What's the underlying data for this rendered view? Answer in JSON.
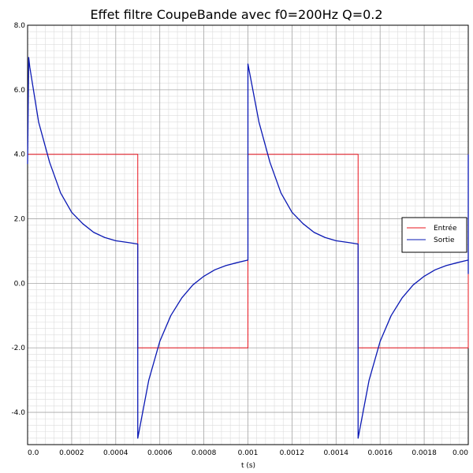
{
  "chart_data": {
    "type": "line",
    "title": "Effet filtre CoupeBande avec f0=200Hz Q=0.2",
    "xlabel": "t (s)",
    "ylabel": "",
    "xlim": [
      0,
      0.002
    ],
    "ylim": [
      -5,
      8
    ],
    "x_ticks": [
      0,
      0.0002,
      0.0004,
      0.0006,
      0.0008,
      0.001,
      0.0012,
      0.0014,
      0.0016,
      0.0018,
      0.002
    ],
    "x_tick_labels": [
      "0.0",
      "0.0002",
      "0.0004",
      "0.0006",
      "0.0008",
      "0.001",
      "0.0012",
      "0.0014",
      "0.0016",
      "0.0018",
      "0.00"
    ],
    "y_ticks": [
      -4,
      -2,
      0,
      2,
      4,
      6,
      8
    ],
    "y_tick_labels": [
      "-4.0",
      "-2.0",
      "0.0",
      "2.0",
      "4.0",
      "6.0",
      "8.0"
    ],
    "grid": "major and minor",
    "legend_position": "right",
    "series": [
      {
        "name": "Entrée",
        "color": "#e8141e",
        "points": [
          [
            0,
            4
          ],
          [
            0.0005,
            4
          ],
          [
            0.0005,
            -2
          ],
          [
            0.001,
            -2
          ],
          [
            0.001,
            4
          ],
          [
            0.0015,
            4
          ],
          [
            0.0015,
            -2
          ],
          [
            0.002,
            -2
          ],
          [
            0.002,
            4
          ]
        ]
      },
      {
        "name": "Sortie",
        "color": "#0a18b4",
        "points": [
          [
            0,
            3.7
          ],
          [
            5e-06,
            7.0
          ],
          [
            1e-05,
            6.7
          ],
          [
            5e-05,
            5.0
          ],
          [
            0.0001,
            3.75
          ],
          [
            0.00015,
            2.8
          ],
          [
            0.0002,
            2.2
          ],
          [
            0.00025,
            1.85
          ],
          [
            0.0003,
            1.58
          ],
          [
            0.00035,
            1.42
          ],
          [
            0.0004,
            1.32
          ],
          [
            0.00045,
            1.27
          ],
          [
            0.0005,
            1.22
          ],
          [
            0.0005,
            -4.8
          ],
          [
            0.00055,
            -3.0
          ],
          [
            0.0006,
            -1.8
          ],
          [
            0.00065,
            -1.0
          ],
          [
            0.0007,
            -0.45
          ],
          [
            0.00075,
            -0.05
          ],
          [
            0.0008,
            0.22
          ],
          [
            0.00085,
            0.42
          ],
          [
            0.0009,
            0.55
          ],
          [
            0.00095,
            0.64
          ],
          [
            0.001,
            0.72
          ],
          [
            0.001,
            6.8
          ],
          [
            0.00105,
            5.0
          ],
          [
            0.0011,
            3.75
          ],
          [
            0.00115,
            2.8
          ],
          [
            0.0012,
            2.2
          ],
          [
            0.00125,
            1.85
          ],
          [
            0.0013,
            1.58
          ],
          [
            0.00135,
            1.42
          ],
          [
            0.0014,
            1.32
          ],
          [
            0.00145,
            1.27
          ],
          [
            0.0015,
            1.22
          ],
          [
            0.0015,
            -4.8
          ],
          [
            0.00155,
            -3.0
          ],
          [
            0.0016,
            -1.8
          ],
          [
            0.00165,
            -1.0
          ],
          [
            0.0017,
            -0.45
          ],
          [
            0.00175,
            -0.05
          ],
          [
            0.0018,
            0.22
          ],
          [
            0.00185,
            0.42
          ],
          [
            0.0019,
            0.55
          ],
          [
            0.00195,
            0.64
          ],
          [
            0.002,
            0.72
          ],
          [
            0.002,
            0.3
          ],
          [
            0.002,
            4.0
          ]
        ]
      }
    ]
  }
}
